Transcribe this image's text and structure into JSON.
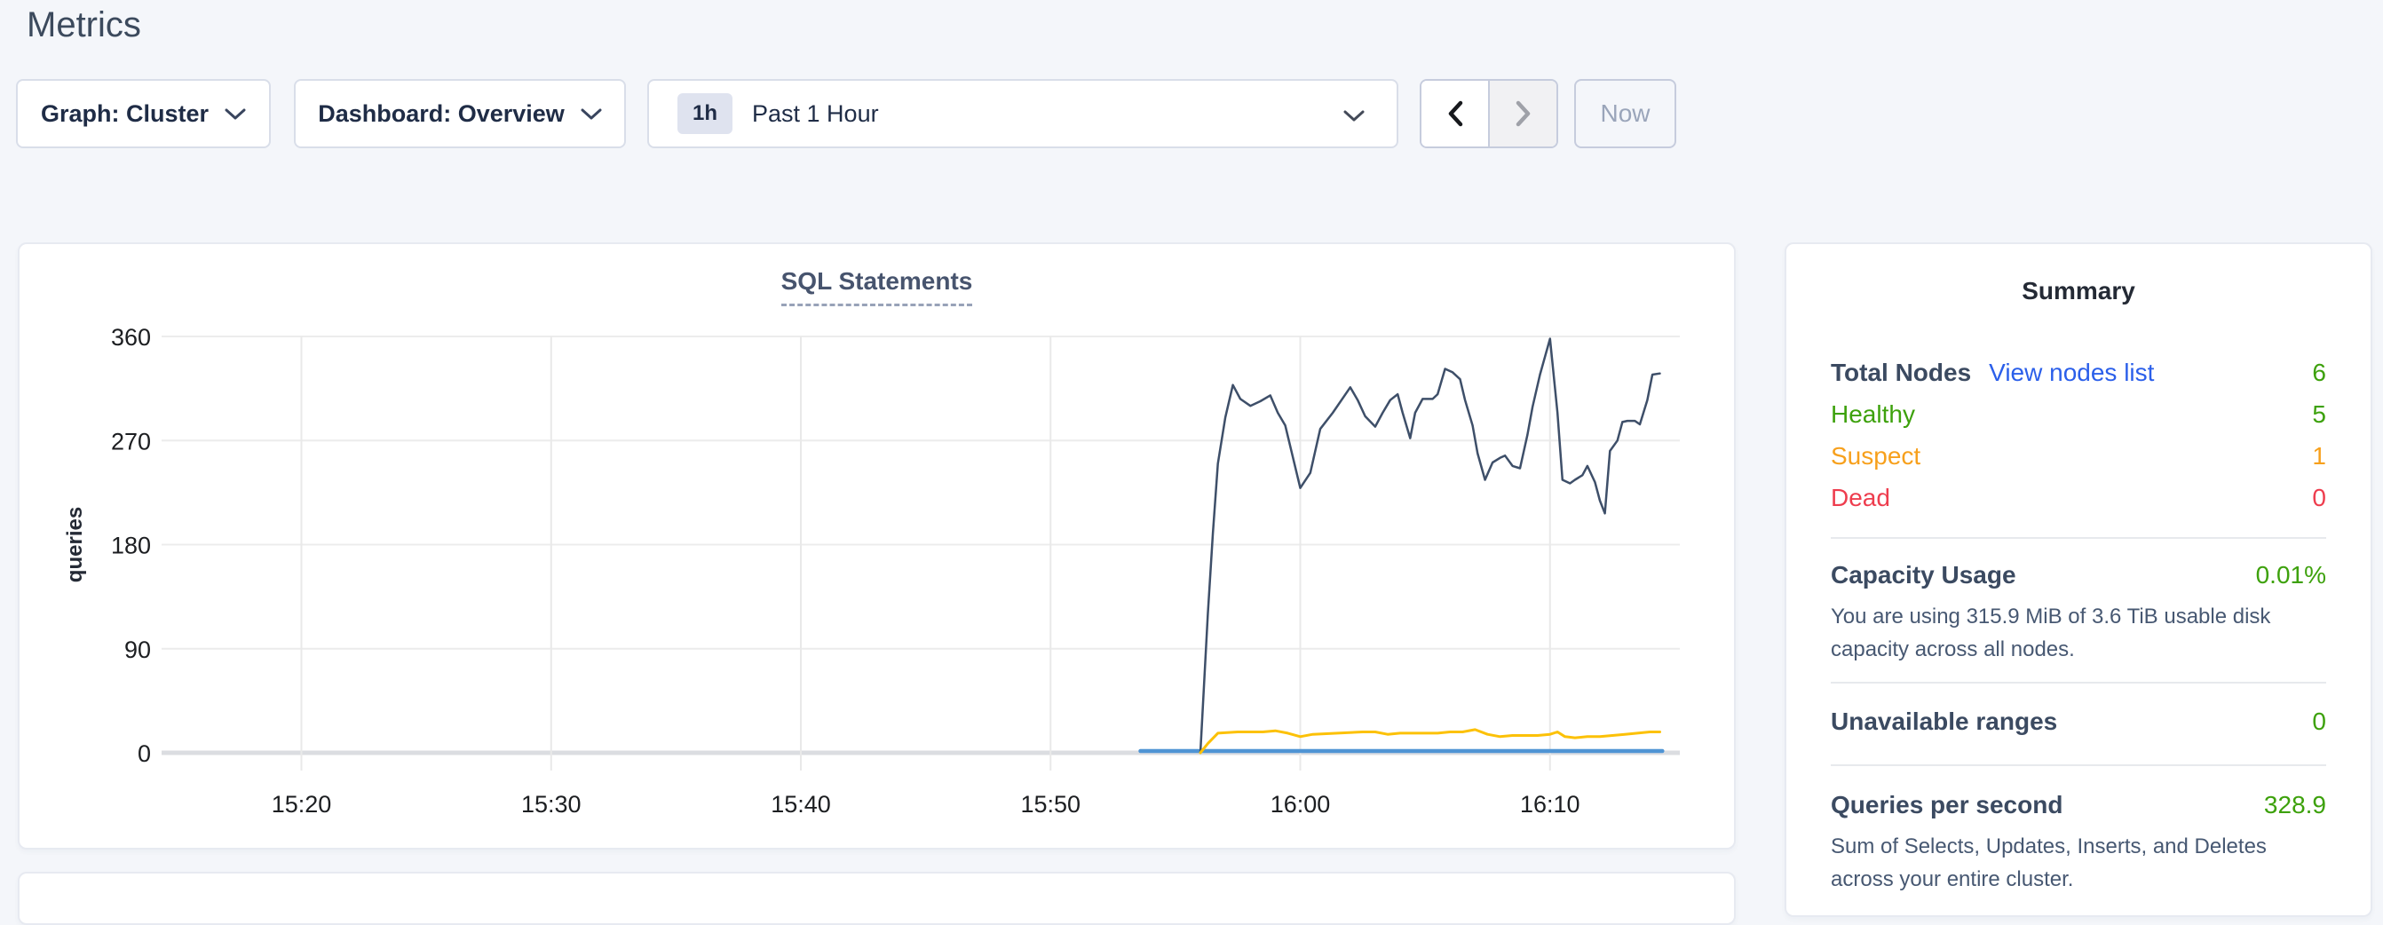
{
  "page": {
    "heading": "Metrics"
  },
  "toolbar": {
    "graph_dropdown": "Graph: Cluster",
    "dashboard_dropdown": "Dashboard: Overview",
    "time_window_badge": "1h",
    "time_window_label": "Past 1 Hour",
    "now_label": "Now",
    "prev_enabled": true,
    "next_enabled": false,
    "now_enabled": false
  },
  "summary": {
    "title": "Summary",
    "total_nodes_label": "Total Nodes",
    "view_nodes_link": "View nodes list",
    "total_nodes_value": "6",
    "node_rows": [
      {
        "label": "Healthy",
        "value": "5",
        "color": "#3da10c"
      },
      {
        "label": "Suspect",
        "value": "1",
        "color": "#f7a01c"
      },
      {
        "label": "Dead",
        "value": "0",
        "color": "#ee3d4e"
      }
    ],
    "capacity_label": "Capacity Usage",
    "capacity_value": "0.01%",
    "capacity_description": "You are using 315.9 MiB of 3.6 TiB usable disk capacity across all nodes.",
    "unavailable_label": "Unavailable ranges",
    "unavailable_value": "0",
    "qps_label": "Queries per second",
    "qps_value": "328.9",
    "qps_description": "Sum of Selects, Updates, Inserts, and Deletes across your entire cluster.",
    "value_color": "#3da10c",
    "link_color": "#2b5fea"
  },
  "chart_data": {
    "type": "line",
    "title": "SQL Statements",
    "xlabel": "",
    "ylabel": "queries",
    "ylim": [
      0,
      360
    ],
    "yticks": [
      0,
      90,
      180,
      270,
      360
    ],
    "x_domain_minutes_after_1500": [
      14.4,
      75.2
    ],
    "xticks": [
      {
        "label": "15:20",
        "minutes": 20
      },
      {
        "label": "15:30",
        "minutes": 30
      },
      {
        "label": "15:40",
        "minutes": 40
      },
      {
        "label": "15:50",
        "minutes": 50
      },
      {
        "label": "16:00",
        "minutes": 60
      },
      {
        "label": "16:10",
        "minutes": 70
      }
    ],
    "grid": true,
    "legend_position": "none",
    "series": [
      {
        "name": "blue-series",
        "color": "#4f94d4",
        "width": 4.5,
        "points": [
          [
            53.6,
            1.5
          ],
          [
            74.5,
            1.5
          ]
        ]
      },
      {
        "name": "navy-series",
        "color": "#3e4f69",
        "width": 2.5,
        "points": [
          [
            56.0,
            0
          ],
          [
            56.15,
            60
          ],
          [
            56.3,
            120
          ],
          [
            56.5,
            190
          ],
          [
            56.7,
            250
          ],
          [
            57.0,
            290
          ],
          [
            57.3,
            318
          ],
          [
            57.6,
            306
          ],
          [
            58.0,
            300
          ],
          [
            58.4,
            304
          ],
          [
            58.8,
            309
          ],
          [
            59.1,
            294
          ],
          [
            59.4,
            283
          ],
          [
            60.0,
            229
          ],
          [
            60.4,
            242
          ],
          [
            60.8,
            280
          ],
          [
            61.3,
            294
          ],
          [
            62.0,
            316
          ],
          [
            62.3,
            305
          ],
          [
            62.6,
            291
          ],
          [
            63.0,
            282
          ],
          [
            63.3,
            294
          ],
          [
            63.6,
            305
          ],
          [
            63.9,
            310
          ],
          [
            64.1,
            294
          ],
          [
            64.4,
            272
          ],
          [
            64.6,
            294
          ],
          [
            64.9,
            306
          ],
          [
            65.3,
            306
          ],
          [
            65.5,
            310
          ],
          [
            65.8,
            332
          ],
          [
            66.1,
            329
          ],
          [
            66.4,
            323
          ],
          [
            66.6,
            305
          ],
          [
            66.9,
            283
          ],
          [
            67.1,
            259
          ],
          [
            67.4,
            236
          ],
          [
            67.7,
            251
          ],
          [
            68.0,
            255
          ],
          [
            68.2,
            257
          ],
          [
            68.5,
            248
          ],
          [
            68.8,
            246
          ],
          [
            69.1,
            275
          ],
          [
            69.3,
            299
          ],
          [
            69.6,
            327
          ],
          [
            70.0,
            358
          ],
          [
            70.3,
            294
          ],
          [
            70.5,
            236
          ],
          [
            70.8,
            233
          ],
          [
            71.0,
            236
          ],
          [
            71.3,
            240
          ],
          [
            71.5,
            248
          ],
          [
            71.8,
            234
          ],
          [
            72.0,
            218
          ],
          [
            72.2,
            207
          ],
          [
            72.4,
            261
          ],
          [
            72.7,
            270
          ],
          [
            72.9,
            286
          ],
          [
            73.1,
            287
          ],
          [
            73.4,
            287
          ],
          [
            73.6,
            284
          ],
          [
            73.9,
            305
          ],
          [
            74.1,
            327
          ],
          [
            74.4,
            328
          ]
        ]
      },
      {
        "name": "yellow-series",
        "color": "#fcc107",
        "width": 3,
        "points": [
          [
            56.0,
            0
          ],
          [
            56.3,
            8
          ],
          [
            56.7,
            17
          ],
          [
            57.5,
            18
          ],
          [
            58.5,
            18
          ],
          [
            59.0,
            19
          ],
          [
            59.5,
            17
          ],
          [
            60.0,
            14
          ],
          [
            60.5,
            16
          ],
          [
            61.5,
            17
          ],
          [
            62.5,
            18
          ],
          [
            63.0,
            18
          ],
          [
            63.5,
            16
          ],
          [
            64.0,
            17
          ],
          [
            64.5,
            17
          ],
          [
            65.0,
            17
          ],
          [
            65.5,
            17
          ],
          [
            66.0,
            18
          ],
          [
            66.5,
            18
          ],
          [
            67.0,
            20
          ],
          [
            67.5,
            16
          ],
          [
            68.0,
            14
          ],
          [
            68.5,
            15
          ],
          [
            69.0,
            15
          ],
          [
            69.5,
            15
          ],
          [
            70.0,
            16
          ],
          [
            70.3,
            18
          ],
          [
            70.6,
            14
          ],
          [
            71.0,
            13
          ],
          [
            71.5,
            14
          ],
          [
            72.0,
            14
          ],
          [
            72.5,
            15
          ],
          [
            73.0,
            16
          ],
          [
            73.5,
            17
          ],
          [
            74.0,
            18
          ],
          [
            74.4,
            18
          ]
        ]
      }
    ]
  }
}
